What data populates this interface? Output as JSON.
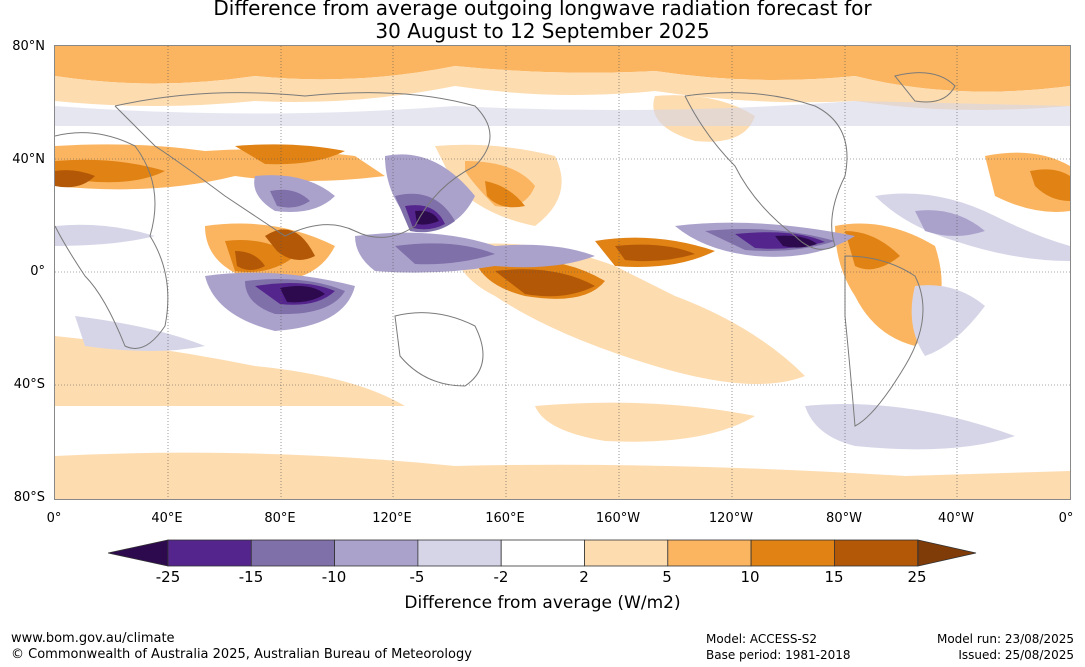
{
  "title": {
    "line1": "Difference from average outgoing longwave radiation forecast for",
    "line2": "30 August to 12 September 2025"
  },
  "map": {
    "lat_labels": [
      "80°N",
      "40°N",
      "0°",
      "40°S",
      "80°S"
    ],
    "lon_labels": [
      "0°",
      "40°E",
      "80°E",
      "120°E",
      "160°E",
      "160°W",
      "120°W",
      "80°W",
      "40°W",
      "0°"
    ]
  },
  "colorbar": {
    "title": "Difference from average (W/m2)",
    "ticks": [
      "-25",
      "-15",
      "-10",
      "-5",
      "-2",
      "2",
      "5",
      "10",
      "15",
      "25"
    ],
    "colors": [
      "#2d0a4e",
      "#55258e",
      "#8070aa",
      "#aba2cc",
      "#d6d5e8",
      "#ffffff",
      "#fddcb0",
      "#fbb560",
      "#e08214",
      "#b35806",
      "#7f3b08"
    ]
  },
  "footer": {
    "website": "www.bom.gov.au/climate",
    "copyright": "© Commonwealth of Australia 2025, Australian Bureau of Meteorology",
    "model": "Model: ACCESS-S2",
    "base_period": "Base period: 1981-2018",
    "model_run": "Model run: 23/08/2025",
    "issued": "Issued: 25/08/2025"
  }
}
